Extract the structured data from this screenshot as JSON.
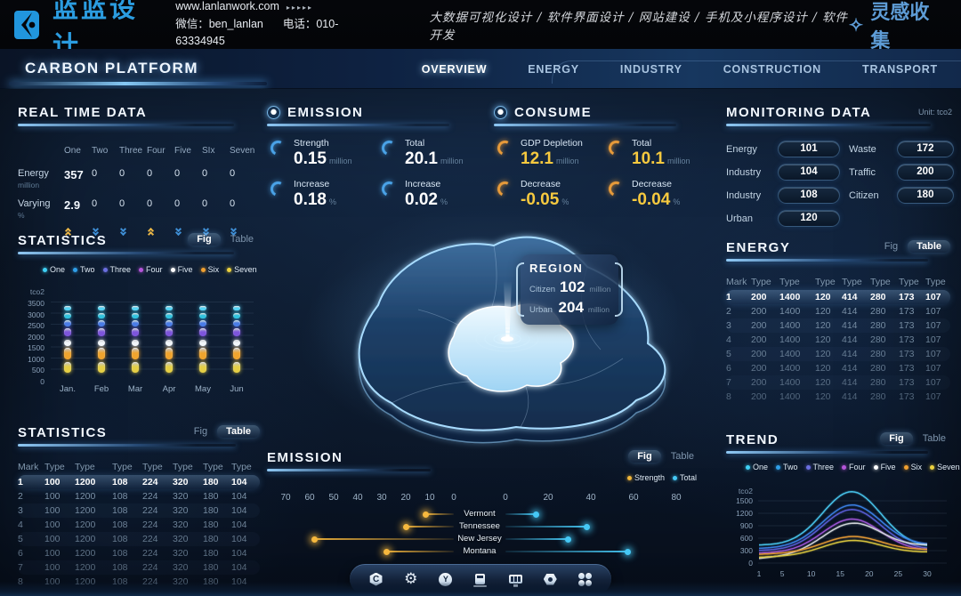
{
  "topbar": {
    "logo_text": "蓝蓝设计",
    "website": "www.lanlanwork.com",
    "website_arrows": "▸▸▸▸▸",
    "wechat": "微信：ben_lanlan",
    "phone": "电话：010-63334945",
    "services": "大数据可视化设计 / 软件界面设计 / 网站建设 / 手机及小程序设计 / 软件开发",
    "collection": "灵感收集"
  },
  "nav": {
    "title": "CARBON PLATFORM",
    "items": [
      {
        "label": "OVERVIEW",
        "active": true
      },
      {
        "label": "ENERGY",
        "active": false
      },
      {
        "label": "INDUSTRY",
        "active": false
      },
      {
        "label": "CONSTRUCTION",
        "active": false
      },
      {
        "label": "TRANSPORT",
        "active": false
      }
    ]
  },
  "toggle_labels": {
    "fig": "Fig",
    "table": "Table"
  },
  "real_time": {
    "title": "REAL TIME DATA",
    "columns": [
      "One",
      "Two",
      "Three",
      "Four",
      "Five",
      "SIx",
      "Seven"
    ],
    "rows": [
      {
        "label": "Energy",
        "unit": "million",
        "values": [
          "357",
          "0",
          "0",
          "0",
          "0",
          "0",
          "0"
        ]
      },
      {
        "label": "Varying",
        "unit": "%",
        "values": [
          "2.9",
          "0",
          "0",
          "0",
          "0",
          "0",
          "0"
        ]
      }
    ],
    "trend_arrows": [
      "up",
      "down",
      "down",
      "up",
      "down",
      "down",
      "down"
    ]
  },
  "emission_stats": {
    "title": "EMISSION",
    "items": [
      {
        "label": "Strength",
        "value": "0.15",
        "unit": "million"
      },
      {
        "label": "Total",
        "value": "20.1",
        "unit": "million"
      },
      {
        "label": "Increase",
        "value": "0.18",
        "unit": "%"
      },
      {
        "label": "Increase",
        "value": "0.02",
        "unit": "%"
      }
    ]
  },
  "consume_stats": {
    "title": "CONSUME",
    "items": [
      {
        "label": "GDP Depletion",
        "value": "12.1",
        "unit": "million"
      },
      {
        "label": "Total",
        "value": "10.1",
        "unit": "million"
      },
      {
        "label": "Decrease",
        "value": "-0.05",
        "unit": "%"
      },
      {
        "label": "Decrease",
        "value": "-0.04",
        "unit": "%"
      }
    ]
  },
  "monitoring": {
    "title": "MONITORING DATA",
    "unit": "Unit: tco2",
    "left": [
      {
        "label": "Energy",
        "value": "101"
      },
      {
        "label": "Industry",
        "value": "104"
      },
      {
        "label": "Industry",
        "value": "108"
      },
      {
        "label": "Urban",
        "value": "120"
      }
    ],
    "right": [
      {
        "label": "Waste",
        "value": "172"
      },
      {
        "label": "Traffic",
        "value": "200"
      },
      {
        "label": "Citizen",
        "value": "180"
      }
    ]
  },
  "region_tooltip": {
    "title": "REGION",
    "rows": [
      {
        "label": "Citizen",
        "value": "102",
        "unit": "million"
      },
      {
        "label": "Urban",
        "value": "204",
        "unit": "million"
      }
    ]
  },
  "statistics_fig": {
    "title": "STATISTICS",
    "active_view": "fig"
  },
  "statistics_table": {
    "title": "STATISTICS",
    "active_view": "table",
    "headers": [
      "Mark",
      "Type",
      "Type",
      "Type",
      "Type",
      "Type",
      "Type",
      "Type"
    ],
    "rows": [
      [
        "1",
        "100",
        "1200",
        "108",
        "224",
        "320",
        "180",
        "104"
      ],
      [
        "2",
        "100",
        "1200",
        "108",
        "224",
        "320",
        "180",
        "104"
      ],
      [
        "3",
        "100",
        "1200",
        "108",
        "224",
        "320",
        "180",
        "104"
      ],
      [
        "4",
        "100",
        "1200",
        "108",
        "224",
        "320",
        "180",
        "104"
      ],
      [
        "5",
        "100",
        "1200",
        "108",
        "224",
        "320",
        "180",
        "104"
      ],
      [
        "6",
        "100",
        "1200",
        "108",
        "224",
        "320",
        "180",
        "104"
      ],
      [
        "7",
        "100",
        "1200",
        "108",
        "224",
        "320",
        "180",
        "104"
      ],
      [
        "8",
        "100",
        "1200",
        "108",
        "224",
        "320",
        "180",
        "104"
      ]
    ]
  },
  "energy_table": {
    "title": "ENERGY",
    "active_view": "table",
    "headers": [
      "Mark",
      "Type",
      "Type",
      "Type",
      "Type",
      "Type",
      "Type",
      "Type"
    ],
    "rows": [
      [
        "1",
        "200",
        "1400",
        "120",
        "414",
        "280",
        "173",
        "107"
      ],
      [
        "2",
        "200",
        "1400",
        "120",
        "414",
        "280",
        "173",
        "107"
      ],
      [
        "3",
        "200",
        "1400",
        "120",
        "414",
        "280",
        "173",
        "107"
      ],
      [
        "4",
        "200",
        "1400",
        "120",
        "414",
        "280",
        "173",
        "107"
      ],
      [
        "5",
        "200",
        "1400",
        "120",
        "414",
        "280",
        "173",
        "107"
      ],
      [
        "6",
        "200",
        "1400",
        "120",
        "414",
        "280",
        "173",
        "107"
      ],
      [
        "7",
        "200",
        "1400",
        "120",
        "414",
        "280",
        "173",
        "107"
      ],
      [
        "8",
        "200",
        "1400",
        "120",
        "414",
        "280",
        "173",
        "107"
      ]
    ]
  },
  "emission_chart_panel": {
    "title": "EMISSION",
    "active_view": "fig"
  },
  "trend_panel": {
    "title": "TREND",
    "active_view": "fig"
  },
  "chart_data": [
    {
      "id": "statistics",
      "type": "bar",
      "subtype": "stacked-capsule-columns",
      "title": "STATISTICS",
      "ylabel": "tco2",
      "ylim": [
        0,
        3500
      ],
      "yticks": [
        3500,
        3000,
        2500,
        2000,
        1500,
        1000,
        500,
        0
      ],
      "categories": [
        "Jan.",
        "Feb",
        "Mar",
        "Apr",
        "May",
        "Jun"
      ],
      "legend": [
        "One",
        "Two",
        "Three",
        "Four",
        "Five",
        "Six",
        "Seven"
      ],
      "legend_colors": [
        "#3fd0f5",
        "#2f9fe8",
        "#6b6fe0",
        "#b455d8",
        "#ffffff",
        "#f0a030",
        "#ecd23f"
      ],
      "segments_per_month": [
        {
          "name": "Seven",
          "color": "#e5cf45",
          "range": [
            300,
            800
          ]
        },
        {
          "name": "Six",
          "color": "#f0a42e",
          "range": [
            900,
            1450
          ]
        },
        {
          "name": "Five",
          "color": "#f2f6fa",
          "range": [
            1500,
            1800
          ]
        },
        {
          "name": "Four",
          "color": "#7d55dc",
          "range": [
            1950,
            2300
          ]
        },
        {
          "name": "Three",
          "color": "#4a7ce8",
          "range": [
            2400,
            2650
          ]
        },
        {
          "name": "Two",
          "color": "#2fc4e0",
          "range": [
            2750,
            3000
          ]
        },
        {
          "name": "One",
          "color": "#55d4f5",
          "range": [
            3100,
            3300
          ]
        }
      ],
      "note": "identical segment stack rendered for each month"
    },
    {
      "id": "emission",
      "type": "bar",
      "subtype": "diverging-lollipop",
      "title": "EMISSION",
      "categories": [
        "Vermont",
        "Tennessee",
        "New Jersey",
        "Montana"
      ],
      "series": [
        {
          "name": "Strength",
          "color": "#f0b63a",
          "values": [
            12,
            20,
            58,
            28
          ]
        },
        {
          "name": "Total",
          "color": "#45c8f5",
          "values": [
            14,
            38,
            29,
            57
          ]
        }
      ],
      "left_axis_ticks": [
        70,
        60,
        50,
        40,
        30,
        20,
        10,
        0
      ],
      "right_axis_ticks": [
        0,
        20,
        40,
        60,
        80
      ]
    },
    {
      "id": "trend",
      "type": "line",
      "title": "TREND",
      "ylabel": "tco2",
      "ylim": [
        0,
        1500
      ],
      "yticks": [
        1500,
        1200,
        900,
        600,
        300,
        0
      ],
      "xticks": [
        1,
        5,
        10,
        15,
        20,
        25,
        30
      ],
      "peak_x": 17,
      "sigma": 5,
      "series": [
        {
          "name": "One",
          "color": "#49c8f0",
          "start": 430,
          "peak": 1720,
          "end": 380
        },
        {
          "name": "Two",
          "color": "#3b82e8",
          "start": 350,
          "peak": 1400,
          "end": 430
        },
        {
          "name": "Three",
          "color": "#5b5fd8",
          "start": 300,
          "peak": 1290,
          "end": 330
        },
        {
          "name": "Four",
          "color": "#a055d8",
          "start": 240,
          "peak": 1060,
          "end": 300
        },
        {
          "name": "Five",
          "color": "#d8dde2",
          "start": 110,
          "peak": 960,
          "end": 420
        },
        {
          "name": "Six",
          "color": "#e89b35",
          "start": 210,
          "peak": 640,
          "end": 320
        },
        {
          "name": "Seven",
          "color": "#ddc93f",
          "start": 140,
          "peak": 545,
          "end": 260
        }
      ]
    }
  ],
  "toolbar": {
    "icons": [
      "shield-c-icon",
      "gear-icon",
      "circle-y-icon",
      "charging-station-icon",
      "display-chart-icon",
      "nut-icon",
      "apps-grid-icon"
    ]
  },
  "colors": {
    "accent_cyan": "#45c8f5",
    "accent_blue": "#3a7bd5",
    "accent_gold": "#f0b63a",
    "accent_yellow": "#e5cf45",
    "panel_text": "#f2f8ff",
    "dim_text": "#8aa0b8",
    "brand_blue": "#2b9ce0"
  }
}
